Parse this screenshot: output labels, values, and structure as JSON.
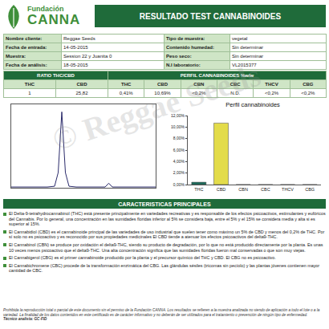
{
  "header": {
    "logo_top": "Fundación",
    "logo_main": "CANNA",
    "title": "RESULTADO TEST CANNABINOIDES"
  },
  "info": [
    [
      [
        "Nombre cliente:",
        "Reggae Seeds"
      ],
      [
        "Tipo de muestra:",
        "vegetal"
      ]
    ],
    [
      [
        "Fecha de entrada:",
        "14-05-2015"
      ],
      [
        "Contenido humedad:",
        "Sin determinar"
      ]
    ],
    [
      [
        "Muestra:",
        "Session 22 y Juanita 0"
      ],
      [
        "Peso seco:",
        "Sin determinar"
      ]
    ],
    [
      [
        "Fecha de análisis:",
        "18-05-2015"
      ],
      [
        "N.I laboratorio:",
        "VL2015377"
      ]
    ]
  ],
  "results": {
    "sections": [
      "RATIO THC/CBD",
      "PERFIL CANNABINOIDES %w/w"
    ],
    "headers": [
      "THC",
      "CBD",
      "THC",
      "CBD",
      "CBN",
      "CBC",
      "THCV",
      "CBG"
    ],
    "values": [
      "1",
      "25,82",
      "0,41%",
      "10,69%",
      "<0,2%",
      "N.D.",
      "<0,2%",
      "<0,2%"
    ]
  },
  "chart_data": [
    {
      "type": "line",
      "x": [
        0,
        2,
        4,
        5,
        6,
        6.5,
        7,
        7.5,
        8,
        9,
        10,
        12,
        13,
        13.5,
        14,
        16,
        20
      ],
      "values": [
        1,
        1,
        1,
        1,
        2,
        20,
        100,
        20,
        2,
        1,
        1,
        1,
        1,
        6,
        1,
        1,
        1
      ],
      "color": "#2b2b6b",
      "xlim": [
        0,
        20
      ],
      "ylim": [
        0,
        110
      ],
      "tick_labels": false
    },
    {
      "type": "bar",
      "title": "Perfil cannabinoides",
      "categories": [
        "THC",
        "CBD",
        "CBN",
        "CBC",
        "THCV",
        "CBG"
      ],
      "values": [
        0.41,
        10.69,
        0,
        0,
        0,
        0
      ],
      "colors": [
        "#1b6b5a",
        "#e3dc4a",
        "#1b6b5a",
        "#1b6b5a",
        "#1b6b5a",
        "#1b6b5a"
      ],
      "ylim": [
        0,
        12
      ],
      "yticks": [
        {
          "value": 0,
          "label": "0,00%"
        },
        {
          "value": 2,
          "label": "2,00%"
        },
        {
          "value": 4,
          "label": "4,00%"
        },
        {
          "value": 6,
          "label": "6,00%"
        },
        {
          "value": 8,
          "label": "8,00%"
        },
        {
          "value": 10,
          "label": "10,00%"
        },
        {
          "value": 12,
          "label": "12,00%"
        }
      ],
      "grid": false
    }
  ],
  "characteristics": {
    "title": "CARACTERISTICAS PRINCIPALES",
    "items": [
      "El Delta-9-tetrahydrocannabinol (THC) está presente principalmente en variedades recreativas y es responsable de los efectos psicoactivos, estimulantes y eufóricos del Cannabis. Por lo general, una concentración en las sumidades floridas inferior al 5% se considera baja, entre el 5% y el 15% se considera media y alta si es superior al 15%.",
      "El Cannabidiol (CBD) es el cannabinoide principal de las variedades de uso industrial que suelen tener como máximo un 5% de CBD y menos del 0,2% de THC. Por sí solo no es psicoactivo y es reconocido por sus propiedades medicinales El CBD tiende a atenuar los efectos psicoactivos del delta9-THC.",
      "El Cannabinol (CBN) se produce por oxidación el delta9-THC, siendo su producto de degradación, por lo que no está producido directamente por la planta. Es unas 10 veces menos psicoactivo que el delta9-THC. Una alta concentración significa que las sumidades floridas fueron mal conservadas o que son muy viejas.",
      "El Cannabigerol (CBG) es el primer cannabinoide producido por la planta y el precursor químico del THC y CBD. El CBG no es psicoactivo.",
      "El Cannabichromene (CBC) procede de la transformación enzimática del CBG. Las glándulas sésiles (tricomas sin pecíolo) y las plantas jóvenes contienen mayor cantidad de CBC."
    ]
  },
  "footer": {
    "notice": "Prohibida la reproducción total o parcial de este documento sin el permiso de la Fundación CANNA. Los resultados se refieren a la muestra analizada no siendo de aplicación a todo el lote o a la variedad. La finalidad de los datos contenidos en este certificado es de carácter informativo y no deberán de ser utilizados para el tratamiento o prevención de ningún tipo de enfermedad.",
    "technique": "Técnico analista: GC-FID"
  },
  "watermark": "© Reggae Seeds"
}
